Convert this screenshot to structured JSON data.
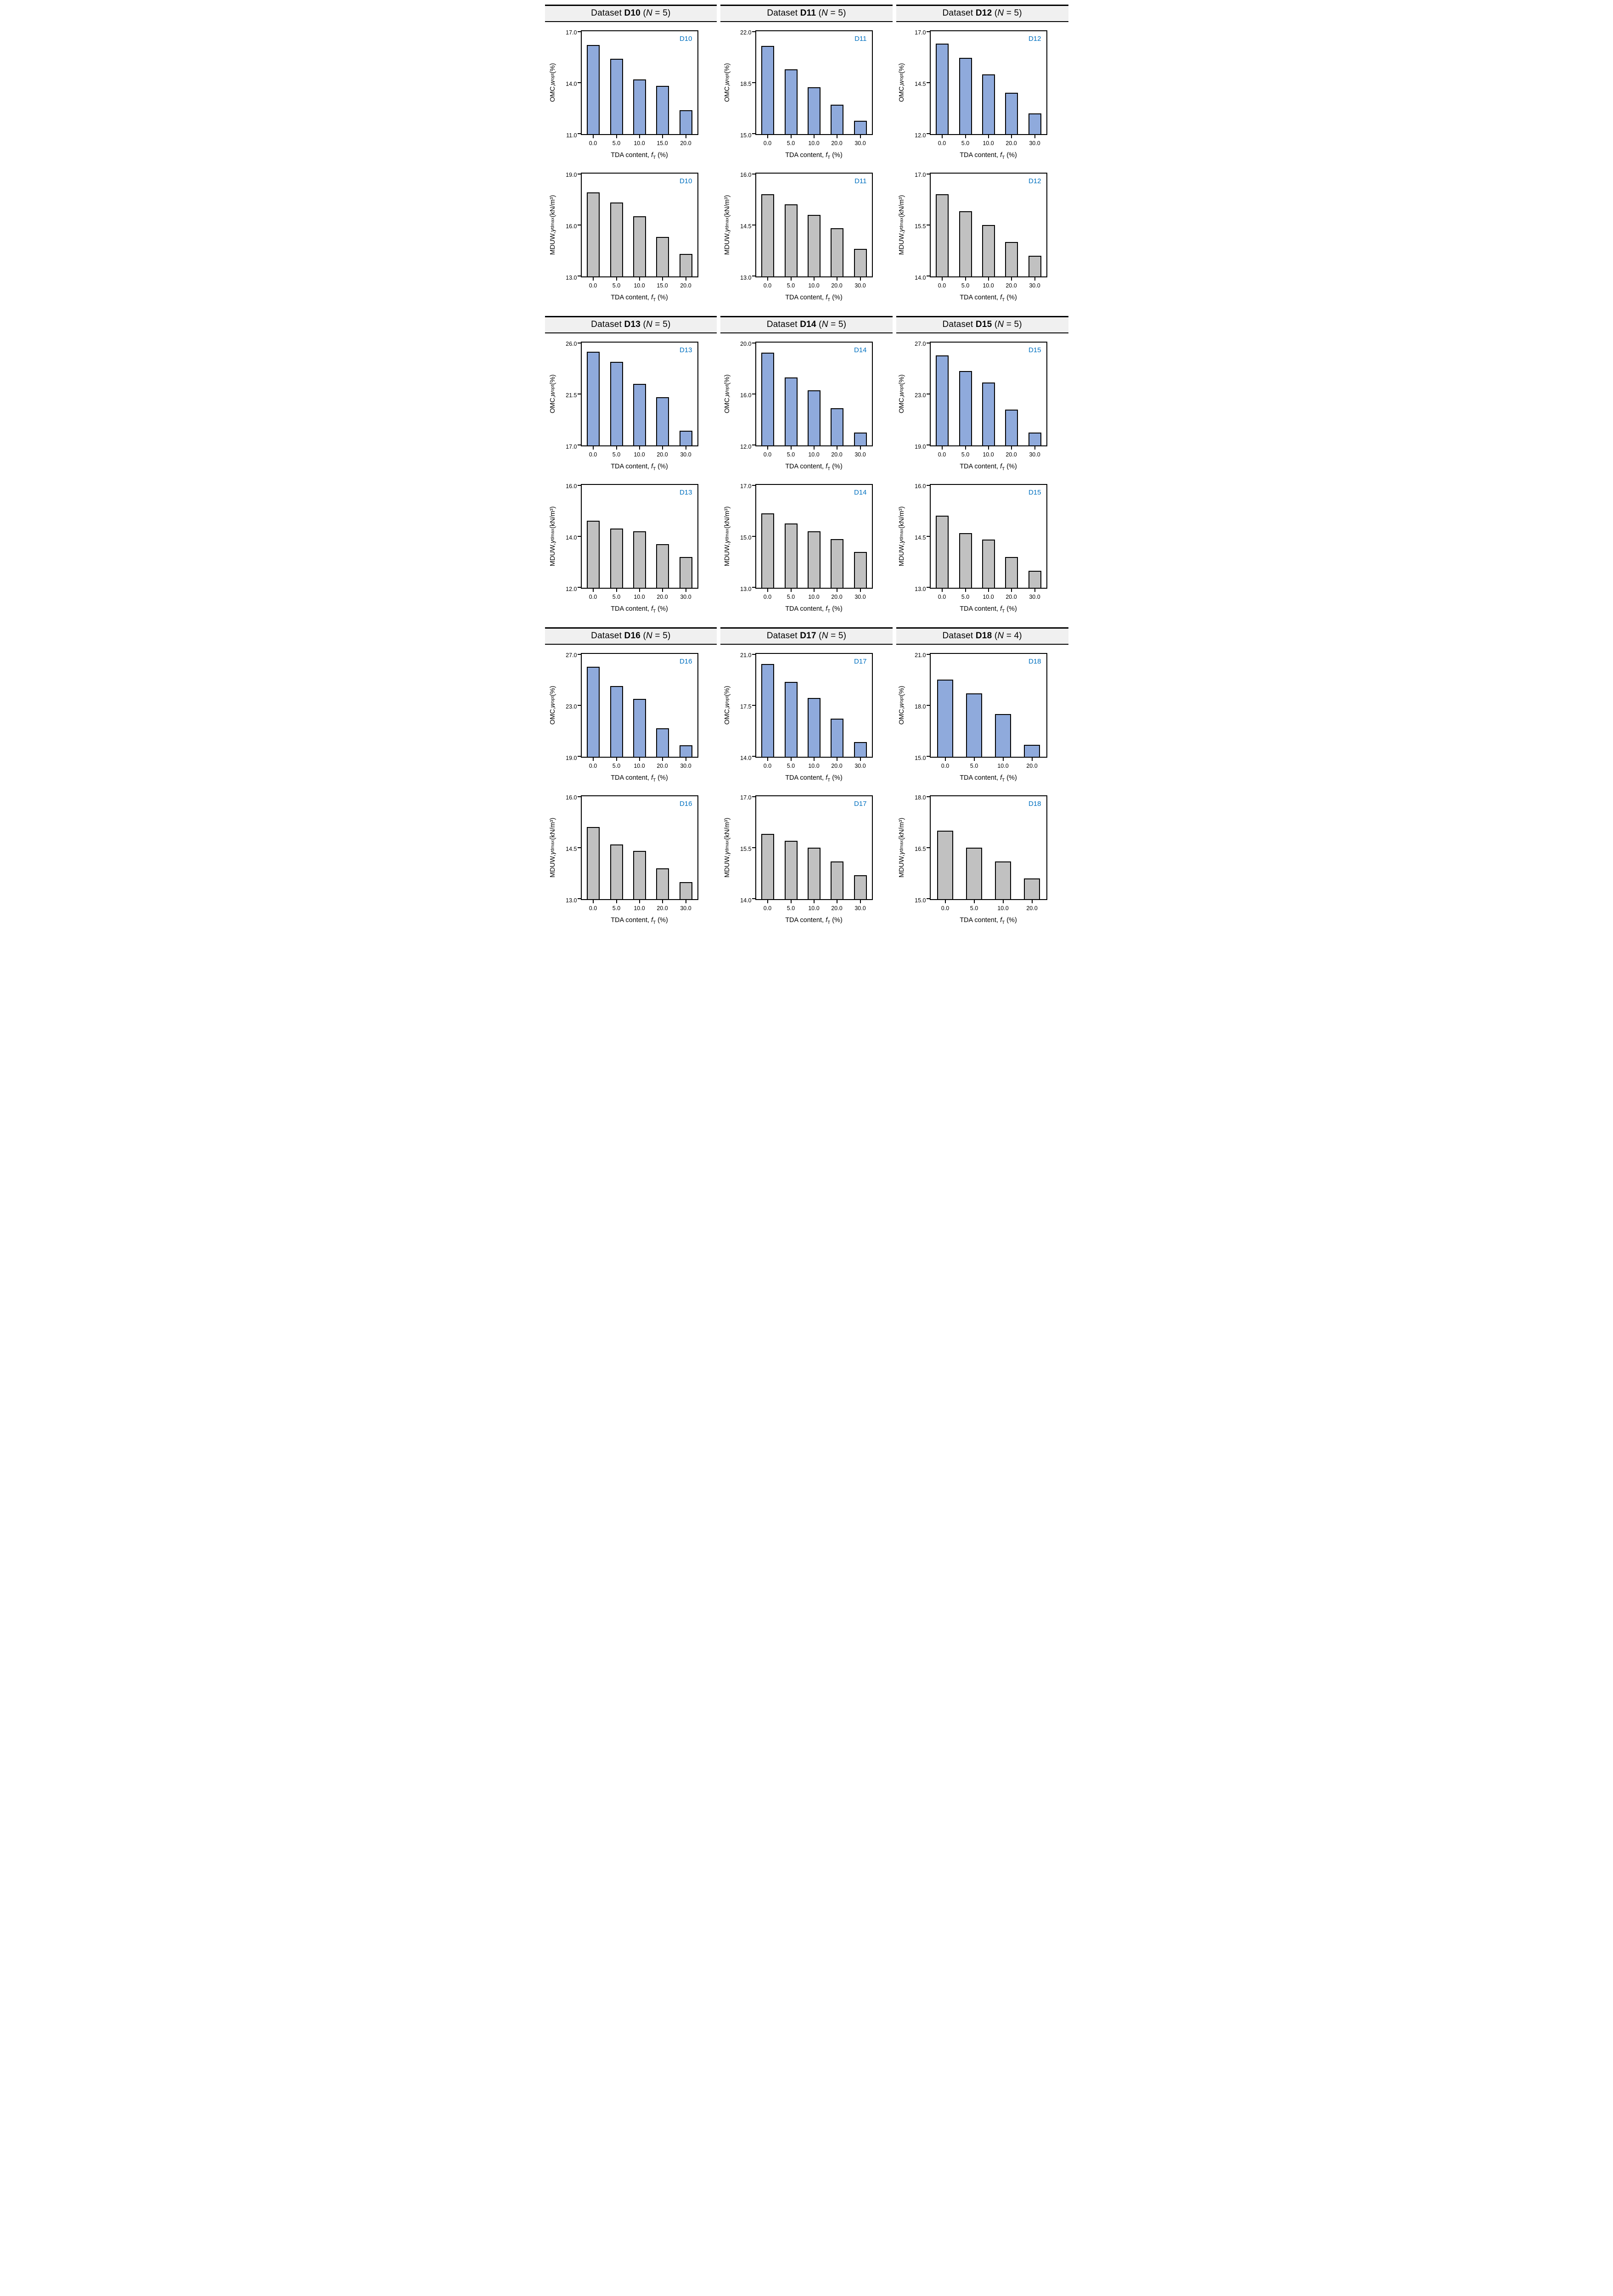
{
  "colors": {
    "omc_bar": "#8faadc",
    "mduw_bar": "#c1c1c1",
    "bar_border": "#000000",
    "dataset_corner_label": "#0070c0",
    "header_background": "#f0f0f0",
    "axis": "#000000"
  },
  "sections": [
    {
      "name": "datasets-d10-d12",
      "headers": [
        {
          "prefix": "Dataset ",
          "dataset_id": "D10",
          "open": " (",
          "n_symbol": "N",
          "close": " = 5)"
        },
        {
          "prefix": "Dataset ",
          "dataset_id": "D11",
          "open": " (",
          "n_symbol": "N",
          "close": " = 5)"
        },
        {
          "prefix": "Dataset ",
          "dataset_id": "D12",
          "open": " (",
          "n_symbol": "N",
          "close": " = 5)"
        }
      ]
    },
    {
      "name": "datasets-d13-d15",
      "headers": [
        {
          "prefix": "Dataset ",
          "dataset_id": "D13",
          "open": " (",
          "n_symbol": "N",
          "close": " = 5)"
        },
        {
          "prefix": "Dataset ",
          "dataset_id": "D14",
          "open": " (",
          "n_symbol": "N",
          "close": " = 5)"
        },
        {
          "prefix": "Dataset ",
          "dataset_id": "D15",
          "open": " (",
          "n_symbol": "N",
          "close": " = 5)"
        }
      ]
    },
    {
      "name": "datasets-d16-d18",
      "headers": [
        {
          "prefix": "Dataset ",
          "dataset_id": "D16",
          "open": " (",
          "n_symbol": "N",
          "close": " = 5)"
        },
        {
          "prefix": "Dataset ",
          "dataset_id": "D17",
          "open": " (",
          "n_symbol": "N",
          "close": " = 5)"
        },
        {
          "prefix": "Dataset ",
          "dataset_id": "D18",
          "open": " (",
          "n_symbol": "N",
          "close": " = 4)"
        }
      ]
    }
  ],
  "chart_data": [
    {
      "id": "D10-OMC",
      "type": "bar",
      "corner_label": "D10",
      "bar_color_key": "omc_bar",
      "ylabel": {
        "prefix": "OMC, ",
        "symbol": "w",
        "sub": "opt",
        "unit": " (%)"
      },
      "xlabel": {
        "prefix": "TDA content, ",
        "symbol": "f",
        "sub": "T",
        "unit": " (%)"
      },
      "categories": [
        "0.0",
        "5.0",
        "10.0",
        "15.0",
        "20.0"
      ],
      "values": [
        16.2,
        15.4,
        14.2,
        13.8,
        12.4
      ],
      "ylim": [
        11.0,
        17.0
      ],
      "yticks": [
        "11.0",
        "14.0",
        "17.0"
      ]
    },
    {
      "id": "D11-OMC",
      "type": "bar",
      "corner_label": "D11",
      "bar_color_key": "omc_bar",
      "ylabel": {
        "prefix": "OMC, ",
        "symbol": "w",
        "sub": "opt",
        "unit": " (%)"
      },
      "xlabel": {
        "prefix": "TDA content, ",
        "symbol": "f",
        "sub": "T",
        "unit": " (%)"
      },
      "categories": [
        "0.0",
        "5.0",
        "10.0",
        "20.0",
        "30.0"
      ],
      "values": [
        21.0,
        19.4,
        18.2,
        17.0,
        15.9
      ],
      "ylim": [
        15.0,
        22.0
      ],
      "yticks": [
        "15.0",
        "18.5",
        "22.0"
      ]
    },
    {
      "id": "D12-OMC",
      "type": "bar",
      "corner_label": "D12",
      "bar_color_key": "omc_bar",
      "ylabel": {
        "prefix": "OMC, ",
        "symbol": "w",
        "sub": "opt",
        "unit": " (%)"
      },
      "xlabel": {
        "prefix": "TDA content, ",
        "symbol": "f",
        "sub": "T",
        "unit": " (%)"
      },
      "categories": [
        "0.0",
        "5.0",
        "10.0",
        "20.0",
        "30.0"
      ],
      "values": [
        16.4,
        15.7,
        14.9,
        14.0,
        13.0
      ],
      "ylim": [
        12.0,
        17.0
      ],
      "yticks": [
        "12.0",
        "14.5",
        "17.0"
      ]
    },
    {
      "id": "D10-MDUW",
      "type": "bar",
      "corner_label": "D10",
      "bar_color_key": "mduw_bar",
      "ylabel": {
        "prefix": "MDUW, ",
        "symbol": "γ",
        "sub": "dmax",
        "unit": " (kN/m³)"
      },
      "xlabel": {
        "prefix": "TDA content, ",
        "symbol": "f",
        "sub": "T",
        "unit": " (%)"
      },
      "categories": [
        "0.0",
        "5.0",
        "10.0",
        "15.0",
        "20.0"
      ],
      "values": [
        17.9,
        17.3,
        16.5,
        15.3,
        14.3
      ],
      "ylim": [
        13.0,
        19.0
      ],
      "yticks": [
        "13.0",
        "16.0",
        "19.0"
      ]
    },
    {
      "id": "D11-MDUW",
      "type": "bar",
      "corner_label": "D11",
      "bar_color_key": "mduw_bar",
      "ylabel": {
        "prefix": "MDUW, ",
        "symbol": "γ",
        "sub": "dmax",
        "unit": " (kN/m³)"
      },
      "xlabel": {
        "prefix": "TDA content, ",
        "symbol": "f",
        "sub": "T",
        "unit": " (%)"
      },
      "categories": [
        "0.0",
        "5.0",
        "10.0",
        "20.0",
        "30.0"
      ],
      "values": [
        15.4,
        15.1,
        14.8,
        14.4,
        13.8
      ],
      "ylim": [
        13.0,
        16.0
      ],
      "yticks": [
        "13.0",
        "14.5",
        "16.0"
      ]
    },
    {
      "id": "D12-MDUW",
      "type": "bar",
      "corner_label": "D12",
      "bar_color_key": "mduw_bar",
      "ylabel": {
        "prefix": "MDUW, ",
        "symbol": "γ",
        "sub": "dmax",
        "unit": " (kN/m³)"
      },
      "xlabel": {
        "prefix": "TDA content, ",
        "symbol": "f",
        "sub": "T",
        "unit": " (%)"
      },
      "categories": [
        "0.0",
        "5.0",
        "10.0",
        "20.0",
        "30.0"
      ],
      "values": [
        16.4,
        15.9,
        15.5,
        15.0,
        14.6
      ],
      "ylim": [
        14.0,
        17.0
      ],
      "yticks": [
        "14.0",
        "15.5",
        "17.0"
      ]
    },
    {
      "id": "D13-OMC",
      "type": "bar",
      "corner_label": "D13",
      "bar_color_key": "omc_bar",
      "ylabel": {
        "prefix": "OMC, ",
        "symbol": "w",
        "sub": "opt",
        "unit": " (%)"
      },
      "xlabel": {
        "prefix": "TDA content, ",
        "symbol": "f",
        "sub": "T",
        "unit": " (%)"
      },
      "categories": [
        "0.0",
        "5.0",
        "10.0",
        "20.0",
        "30.0"
      ],
      "values": [
        25.2,
        24.3,
        22.4,
        21.2,
        18.3
      ],
      "ylim": [
        17.0,
        26.0
      ],
      "yticks": [
        "17.0",
        "21.5",
        "26.0"
      ]
    },
    {
      "id": "D14-OMC",
      "type": "bar",
      "corner_label": "D14",
      "bar_color_key": "omc_bar",
      "ylabel": {
        "prefix": "OMC, ",
        "symbol": "w",
        "sub": "opt",
        "unit": " (%)"
      },
      "xlabel": {
        "prefix": "TDA content, ",
        "symbol": "f",
        "sub": "T",
        "unit": " (%)"
      },
      "categories": [
        "0.0",
        "5.0",
        "10.0",
        "20.0",
        "30.0"
      ],
      "values": [
        19.2,
        17.3,
        16.3,
        14.9,
        13.0
      ],
      "ylim": [
        12.0,
        20.0
      ],
      "yticks": [
        "12.0",
        "16.0",
        "20.0"
      ]
    },
    {
      "id": "D15-OMC",
      "type": "bar",
      "corner_label": "D15",
      "bar_color_key": "omc_bar",
      "ylabel": {
        "prefix": "OMC, ",
        "symbol": "w",
        "sub": "opt",
        "unit": " (%)"
      },
      "xlabel": {
        "prefix": "TDA content, ",
        "symbol": "f",
        "sub": "T",
        "unit": " (%)"
      },
      "categories": [
        "0.0",
        "5.0",
        "10.0",
        "20.0",
        "30.0"
      ],
      "values": [
        26.0,
        24.8,
        23.9,
        21.8,
        20.0
      ],
      "ylim": [
        19.0,
        27.0
      ],
      "yticks": [
        "19.0",
        "23.0",
        "27.0"
      ]
    },
    {
      "id": "D13-MDUW",
      "type": "bar",
      "corner_label": "D13",
      "bar_color_key": "mduw_bar",
      "ylabel": {
        "prefix": "MDUW, ",
        "symbol": "γ",
        "sub": "dmax",
        "unit": " (kN/m³)"
      },
      "xlabel": {
        "prefix": "TDA content, ",
        "symbol": "f",
        "sub": "T",
        "unit": " (%)"
      },
      "categories": [
        "0.0",
        "5.0",
        "10.0",
        "20.0",
        "30.0"
      ],
      "values": [
        14.6,
        14.3,
        14.2,
        13.7,
        13.2
      ],
      "ylim": [
        12.0,
        16.0
      ],
      "yticks": [
        "12.0",
        "14.0",
        "16.0"
      ]
    },
    {
      "id": "D14-MDUW",
      "type": "bar",
      "corner_label": "D14",
      "bar_color_key": "mduw_bar",
      "ylabel": {
        "prefix": "MDUW, ",
        "symbol": "γ",
        "sub": "dmax",
        "unit": " (kN/m³)"
      },
      "xlabel": {
        "prefix": "TDA content, ",
        "symbol": "f",
        "sub": "T",
        "unit": " (%)"
      },
      "categories": [
        "0.0",
        "5.0",
        "10.0",
        "20.0",
        "30.0"
      ],
      "values": [
        15.9,
        15.5,
        15.2,
        14.9,
        14.4
      ],
      "ylim": [
        13.0,
        17.0
      ],
      "yticks": [
        "13.0",
        "15.0",
        "17.0"
      ]
    },
    {
      "id": "D15-MDUW",
      "type": "bar",
      "corner_label": "D15",
      "bar_color_key": "mduw_bar",
      "ylabel": {
        "prefix": "MDUW, ",
        "symbol": "γ",
        "sub": "dmax",
        "unit": " (kN/m³)"
      },
      "xlabel": {
        "prefix": "TDA content, ",
        "symbol": "f",
        "sub": "T",
        "unit": " (%)"
      },
      "categories": [
        "0.0",
        "5.0",
        "10.0",
        "20.0",
        "30.0"
      ],
      "values": [
        15.1,
        14.6,
        14.4,
        13.9,
        13.5
      ],
      "ylim": [
        13.0,
        16.0
      ],
      "yticks": [
        "13.0",
        "14.5",
        "16.0"
      ]
    },
    {
      "id": "D16-OMC",
      "type": "bar",
      "corner_label": "D16",
      "bar_color_key": "omc_bar",
      "ylabel": {
        "prefix": "OMC, ",
        "symbol": "w",
        "sub": "opt",
        "unit": " (%)"
      },
      "xlabel": {
        "prefix": "TDA content, ",
        "symbol": "f",
        "sub": "T",
        "unit": " (%)"
      },
      "categories": [
        "0.0",
        "5.0",
        "10.0",
        "20.0",
        "30.0"
      ],
      "values": [
        26.0,
        24.5,
        23.5,
        21.2,
        19.9
      ],
      "ylim": [
        19.0,
        27.0
      ],
      "yticks": [
        "19.0",
        "23.0",
        "27.0"
      ]
    },
    {
      "id": "D17-OMC",
      "type": "bar",
      "corner_label": "D17",
      "bar_color_key": "omc_bar",
      "ylabel": {
        "prefix": "OMC, ",
        "symbol": "w",
        "sub": "opt",
        "unit": " (%)"
      },
      "xlabel": {
        "prefix": "TDA content, ",
        "symbol": "f",
        "sub": "T",
        "unit": " (%)"
      },
      "categories": [
        "0.0",
        "5.0",
        "10.0",
        "20.0",
        "30.0"
      ],
      "values": [
        20.3,
        19.1,
        18.0,
        16.6,
        15.0
      ],
      "ylim": [
        14.0,
        21.0
      ],
      "yticks": [
        "14.0",
        "17.5",
        "21.0"
      ]
    },
    {
      "id": "D18-OMC",
      "type": "bar",
      "corner_label": "D18",
      "bar_color_key": "omc_bar",
      "ylabel": {
        "prefix": "OMC, ",
        "symbol": "w",
        "sub": "opt",
        "unit": " (%)"
      },
      "xlabel": {
        "prefix": "TDA content, ",
        "symbol": "f",
        "sub": "T",
        "unit": " (%)"
      },
      "categories": [
        "0.0",
        "5.0",
        "10.0",
        "20.0"
      ],
      "values": [
        19.5,
        18.7,
        17.5,
        15.7
      ],
      "ylim": [
        15.0,
        21.0
      ],
      "yticks": [
        "15.0",
        "18.0",
        "21.0"
      ]
    },
    {
      "id": "D16-MDUW",
      "type": "bar",
      "corner_label": "D16",
      "bar_color_key": "mduw_bar",
      "ylabel": {
        "prefix": "MDUW, ",
        "symbol": "γ",
        "sub": "dmax",
        "unit": " (kN/m³)"
      },
      "xlabel": {
        "prefix": "TDA content, ",
        "symbol": "f",
        "sub": "T",
        "unit": " (%)"
      },
      "categories": [
        "0.0",
        "5.0",
        "10.0",
        "20.0",
        "30.0"
      ],
      "values": [
        15.1,
        14.6,
        14.4,
        13.9,
        13.5
      ],
      "ylim": [
        13.0,
        16.0
      ],
      "yticks": [
        "13.0",
        "14.5",
        "16.0"
      ]
    },
    {
      "id": "D17-MDUW",
      "type": "bar",
      "corner_label": "D17",
      "bar_color_key": "mduw_bar",
      "ylabel": {
        "prefix": "MDUW, ",
        "symbol": "γ",
        "sub": "dmax",
        "unit": " (kN/m³)"
      },
      "xlabel": {
        "prefix": "TDA content, ",
        "symbol": "f",
        "sub": "T",
        "unit": " (%)"
      },
      "categories": [
        "0.0",
        "5.0",
        "10.0",
        "20.0",
        "30.0"
      ],
      "values": [
        15.9,
        15.7,
        15.5,
        15.1,
        14.7
      ],
      "ylim": [
        14.0,
        17.0
      ],
      "yticks": [
        "14.0",
        "15.5",
        "17.0"
      ]
    },
    {
      "id": "D18-MDUW",
      "type": "bar",
      "corner_label": "D18",
      "bar_color_key": "mduw_bar",
      "ylabel": {
        "prefix": "MDUW, ",
        "symbol": "γ",
        "sub": "dmax",
        "unit": " (kN/m³)"
      },
      "xlabel": {
        "prefix": "TDA content, ",
        "symbol": "f",
        "sub": "T",
        "unit": " (%)"
      },
      "categories": [
        "0.0",
        "5.0",
        "10.0",
        "20.0"
      ],
      "values": [
        17.0,
        16.5,
        16.1,
        15.6
      ],
      "ylim": [
        15.0,
        18.0
      ],
      "yticks": [
        "15.0",
        "16.5",
        "18.0"
      ]
    }
  ]
}
